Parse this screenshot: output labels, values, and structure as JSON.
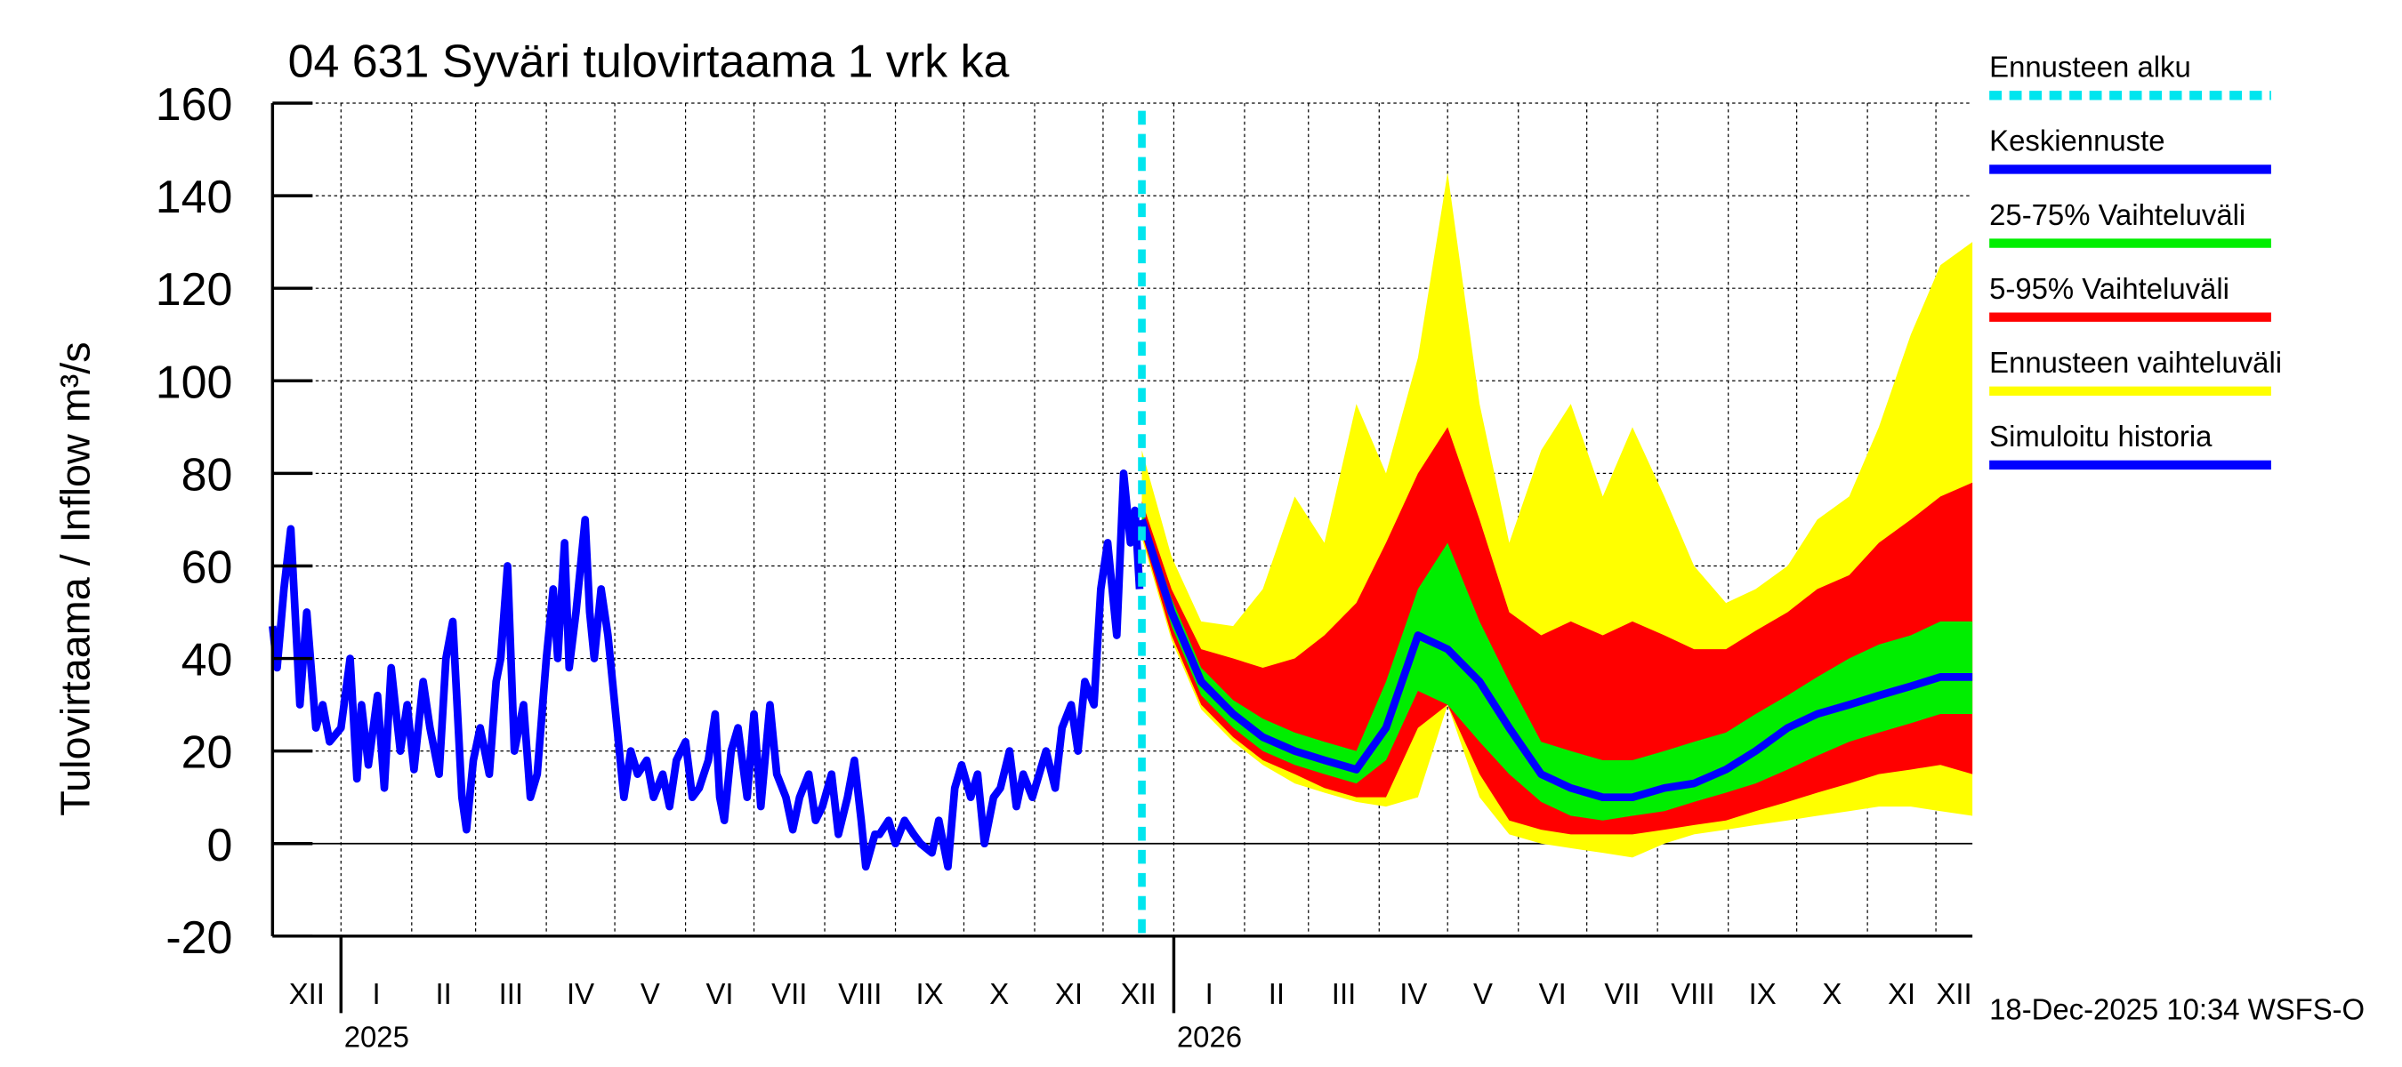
{
  "chart_data": {
    "type": "area",
    "title": "04 631 Syväri tulovirtaama 1 vrk ka",
    "ylabel": "Tulovirtaama / Inflow    m³/s",
    "ylim": [
      -20,
      160
    ],
    "yticks": [
      -20,
      0,
      20,
      40,
      60,
      80,
      100,
      120,
      140,
      160
    ],
    "x_unit": "days since 2025-01-01",
    "xlim": [
      -30,
      715
    ],
    "grid": true,
    "legend_position": "right",
    "forecast_start_day": 351,
    "timestamp": "18-Dec-2025 10:34 WSFS-O",
    "years": [
      {
        "label": "2025",
        "day": 0
      },
      {
        "label": "2026",
        "day": 365
      }
    ],
    "months": [
      {
        "label": "XII",
        "start": -31,
        "end": 0
      },
      {
        "label": "I",
        "start": 0,
        "end": 31
      },
      {
        "label": "II",
        "start": 31,
        "end": 59
      },
      {
        "label": "III",
        "start": 59,
        "end": 90
      },
      {
        "label": "IV",
        "start": 90,
        "end": 120
      },
      {
        "label": "V",
        "start": 120,
        "end": 151
      },
      {
        "label": "VI",
        "start": 151,
        "end": 181
      },
      {
        "label": "VII",
        "start": 181,
        "end": 212
      },
      {
        "label": "VIII",
        "start": 212,
        "end": 243
      },
      {
        "label": "IX",
        "start": 243,
        "end": 273
      },
      {
        "label": "X",
        "start": 273,
        "end": 304
      },
      {
        "label": "XI",
        "start": 304,
        "end": 334
      },
      {
        "label": "XII",
        "start": 334,
        "end": 365
      },
      {
        "label": "I",
        "start": 365,
        "end": 396
      },
      {
        "label": "II",
        "start": 396,
        "end": 424
      },
      {
        "label": "III",
        "start": 424,
        "end": 455
      },
      {
        "label": "IV",
        "start": 455,
        "end": 485
      },
      {
        "label": "V",
        "start": 485,
        "end": 516
      },
      {
        "label": "VI",
        "start": 516,
        "end": 546
      },
      {
        "label": "VII",
        "start": 546,
        "end": 577
      },
      {
        "label": "VIII",
        "start": 577,
        "end": 608
      },
      {
        "label": "IX",
        "start": 608,
        "end": 638
      },
      {
        "label": "X",
        "start": 638,
        "end": 669
      },
      {
        "label": "XI",
        "start": 669,
        "end": 699
      },
      {
        "label": "XII",
        "start": 699,
        "end": 730
      }
    ],
    "legend": [
      {
        "label": "Ennusteen alku",
        "color": "#00e5ee",
        "style": "dashed"
      },
      {
        "label": "Keskiennuste",
        "color": "#0000ff",
        "style": "solid"
      },
      {
        "label": "25-75% Vaihteluväli",
        "color": "#00ee00",
        "style": "solid"
      },
      {
        "label": "5-95% Vaihteluväli",
        "color": "#ff0000",
        "style": "solid"
      },
      {
        "label": "Ennusteen vaihteluväli",
        "color": "#ffff00",
        "style": "solid"
      },
      {
        "label": "Simuloitu historia",
        "color": "#0000ff",
        "style": "solid"
      }
    ],
    "history": {
      "name": "Simuloitu historia",
      "x": [
        -30,
        -28,
        -25,
        -22,
        -18,
        -15,
        -11,
        -8,
        -5,
        0,
        4,
        7,
        9,
        12,
        16,
        19,
        22,
        26,
        29,
        32,
        36,
        39,
        43,
        46,
        49,
        53,
        55,
        58,
        61,
        65,
        68,
        70,
        73,
        76,
        80,
        83,
        86,
        90,
        93,
        95,
        98,
        100,
        103,
        107,
        109,
        111,
        114,
        117,
        120,
        124,
        127,
        130,
        134,
        137,
        141,
        144,
        147,
        151,
        154,
        157,
        161,
        164,
        166,
        168,
        171,
        174,
        178,
        181,
        184,
        188,
        191,
        195,
        198,
        201,
        205,
        208,
        211,
        215,
        218,
        222,
        225,
        228,
        230,
        234,
        236,
        240,
        243,
        247,
        251,
        254,
        259,
        262,
        266,
        269,
        272,
        276,
        279,
        282,
        286,
        289,
        293,
        296,
        299,
        303,
        306,
        309,
        313,
        316,
        320,
        323,
        326,
        330,
        333,
        336,
        340,
        343,
        346,
        348,
        350
      ],
      "y": [
        47,
        38,
        55,
        68,
        30,
        50,
        25,
        30,
        22,
        25,
        40,
        14,
        30,
        17,
        32,
        12,
        38,
        20,
        30,
        16,
        35,
        25,
        15,
        40,
        48,
        10,
        3,
        18,
        25,
        15,
        35,
        40,
        60,
        20,
        30,
        10,
        15,
        40,
        55,
        40,
        65,
        38,
        50,
        70,
        50,
        40,
        55,
        45,
        30,
        10,
        20,
        15,
        18,
        10,
        15,
        8,
        18,
        22,
        10,
        12,
        18,
        28,
        10,
        5,
        20,
        25,
        10,
        28,
        8,
        30,
        15,
        10,
        3,
        10,
        15,
        5,
        8,
        15,
        2,
        10,
        18,
        5,
        -5,
        2,
        2,
        5,
        0,
        5,
        2,
        0,
        -2,
        5,
        -5,
        12,
        17,
        10,
        15,
        0,
        10,
        12,
        20,
        8,
        15,
        10,
        15,
        20,
        12,
        25,
        30,
        20,
        35,
        30,
        55,
        65,
        45,
        80,
        65,
        72,
        55
      ]
    },
    "forecast": {
      "x": [
        351,
        364,
        377,
        391,
        404,
        418,
        431,
        445,
        458,
        472,
        485,
        499,
        512,
        526,
        539,
        553,
        566,
        580,
        593,
        607,
        620,
        634,
        647,
        661,
        674,
        688,
        701,
        715
      ],
      "median": [
        70,
        50,
        35,
        28,
        23,
        20,
        18,
        16,
        25,
        45,
        42,
        35,
        25,
        15,
        12,
        10,
        10,
        12,
        13,
        16,
        20,
        25,
        28,
        30,
        32,
        34,
        36,
        36
      ],
      "p25": [
        68,
        47,
        32,
        25,
        20,
        17,
        15,
        13,
        18,
        33,
        30,
        22,
        15,
        9,
        6,
        5,
        6,
        7,
        9,
        11,
        13,
        16,
        19,
        22,
        24,
        26,
        28,
        28
      ],
      "p75": [
        72,
        53,
        38,
        31,
        27,
        24,
        22,
        20,
        35,
        55,
        65,
        48,
        35,
        22,
        20,
        18,
        18,
        20,
        22,
        24,
        28,
        32,
        36,
        40,
        43,
        45,
        48,
        48
      ],
      "p5": [
        67,
        45,
        30,
        23,
        18,
        15,
        12,
        10,
        10,
        25,
        30,
        15,
        5,
        3,
        2,
        2,
        2,
        3,
        4,
        5,
        7,
        9,
        11,
        13,
        15,
        16,
        17,
        15
      ],
      "p95": [
        74,
        55,
        42,
        40,
        38,
        40,
        45,
        52,
        65,
        80,
        90,
        70,
        50,
        45,
        48,
        45,
        48,
        45,
        42,
        42,
        46,
        50,
        55,
        58,
        65,
        70,
        75,
        78
      ],
      "min": [
        66,
        44,
        29,
        22,
        17,
        13,
        11,
        9,
        8,
        10,
        30,
        10,
        2,
        0,
        -1,
        -2,
        -3,
        0,
        2,
        3,
        4,
        5,
        6,
        7,
        8,
        8,
        7,
        6
      ],
      "max": [
        85,
        62,
        48,
        47,
        55,
        75,
        65,
        95,
        80,
        105,
        145,
        95,
        65,
        85,
        95,
        75,
        90,
        75,
        60,
        52,
        55,
        60,
        70,
        75,
        90,
        110,
        125,
        130
      ]
    }
  }
}
